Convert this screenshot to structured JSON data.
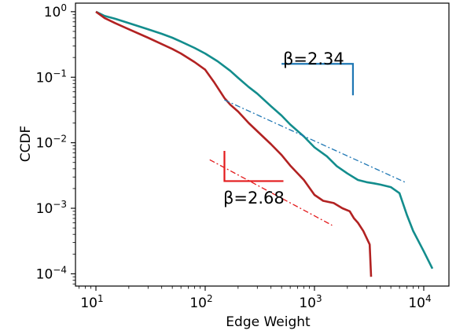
{
  "chart_data": {
    "type": "line",
    "xlabel": "Edge Weight",
    "ylabel": "CCDF",
    "xscale": "log",
    "yscale": "log",
    "xlim": [
      6.5,
      17000
    ],
    "ylim": [
      6.5e-05,
      1.35
    ],
    "grid": false,
    "xticks": [
      {
        "value": 10,
        "base": "10",
        "exp": "1"
      },
      {
        "value": 100,
        "base": "10",
        "exp": "2"
      },
      {
        "value": 1000,
        "base": "10",
        "exp": "3"
      },
      {
        "value": 10000,
        "base": "10",
        "exp": "4"
      }
    ],
    "yticks": [
      {
        "value": 1,
        "base": "10",
        "exp": "0"
      },
      {
        "value": 0.1,
        "base": "10",
        "exp": "−1"
      },
      {
        "value": 0.01,
        "base": "10",
        "exp": "−2"
      },
      {
        "value": 0.001,
        "base": "10",
        "exp": "−3"
      },
      {
        "value": 0.0001,
        "base": "10",
        "exp": "−4"
      }
    ],
    "series": [
      {
        "color": "#138d8d",
        "x": [
          10,
          12,
          15,
          20,
          30,
          40,
          50,
          60,
          80,
          100,
          130,
          170,
          200,
          250,
          300,
          400,
          500,
          600,
          800,
          1000,
          1300,
          1600,
          2000,
          2500,
          3000,
          3500,
          4000,
          5000,
          6000,
          7000,
          8000,
          10000,
          12000
        ],
        "y": [
          1.0,
          0.86,
          0.78,
          0.67,
          0.54,
          0.46,
          0.4,
          0.35,
          0.28,
          0.23,
          0.175,
          0.125,
          0.098,
          0.071,
          0.056,
          0.036,
          0.026,
          0.019,
          0.0125,
          0.0085,
          0.0062,
          0.0044,
          0.0034,
          0.0027,
          0.0025,
          0.0024,
          0.0023,
          0.0021,
          0.0017,
          0.0008,
          0.00045,
          0.00022,
          0.00012
        ]
      },
      {
        "color": "#b22222",
        "x": [
          10,
          12,
          15,
          20,
          30,
          40,
          50,
          60,
          80,
          100,
          120,
          150,
          170,
          200,
          250,
          300,
          400,
          500,
          600,
          800,
          1000,
          1200,
          1500,
          1800,
          2100,
          2300,
          2500,
          2800,
          3200,
          3300
        ],
        "y": [
          1.0,
          0.8,
          0.67,
          0.54,
          0.4,
          0.32,
          0.27,
          0.23,
          0.17,
          0.13,
          0.085,
          0.048,
          0.038,
          0.03,
          0.02,
          0.015,
          0.0095,
          0.0065,
          0.0045,
          0.0027,
          0.0016,
          0.0013,
          0.0012,
          0.001,
          0.0009,
          0.0007,
          0.0006,
          0.00045,
          0.00028,
          9e-05
        ]
      }
    ],
    "fit_lines": [
      {
        "color": "#1f77b4",
        "beta": "β=2.34",
        "x": [
          150,
          7000
        ],
        "y": [
          0.045,
          0.00243
        ]
      },
      {
        "color": "#e31a1c",
        "beta": "β=2.68",
        "x": [
          110,
          1450
        ],
        "y": [
          0.0055,
          0.00055
        ]
      }
    ],
    "slope_markers": [
      {
        "color": "#1f77b4",
        "x_left": 500,
        "x_corner": 2250,
        "y_top": 0.16,
        "y_bottom": 0.053
      },
      {
        "color": "#e31a1c",
        "x_left": 150,
        "x_right": 520,
        "y_top": 0.0075,
        "y_corner": 0.0026
      }
    ]
  }
}
